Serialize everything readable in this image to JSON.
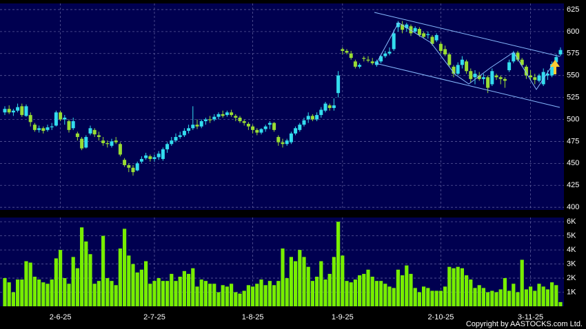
{
  "chart_data": [
    {
      "type": "candlestick",
      "ylim": [
        397,
        632
      ],
      "yticks": [
        400,
        425,
        450,
        475,
        500,
        525,
        550,
        575,
        600,
        625
      ],
      "grid": true,
      "up_color": "#33ddee",
      "down_color": "#99dd33",
      "ohlc": [
        [
          508,
          515,
          505,
          512
        ],
        [
          512,
          516,
          506,
          508
        ],
        [
          508,
          512,
          504,
          510
        ],
        [
          510,
          518,
          508,
          514
        ],
        [
          515,
          518,
          503,
          505
        ],
        [
          504,
          517,
          503,
          515
        ],
        [
          505,
          508,
          492,
          497
        ],
        [
          494,
          496,
          486,
          488
        ],
        [
          488,
          493,
          485,
          490
        ],
        [
          490,
          492,
          484,
          487
        ],
        [
          488,
          494,
          486,
          491
        ],
        [
          491,
          496,
          488,
          492
        ],
        [
          493,
          510,
          492,
          508
        ],
        [
          508,
          510,
          498,
          500
        ],
        [
          500,
          505,
          494,
          502
        ],
        [
          498,
          500,
          485,
          488
        ],
        [
          490,
          502,
          488,
          498
        ],
        [
          484,
          486,
          476,
          480
        ],
        [
          478,
          480,
          465,
          467
        ],
        [
          468,
          482,
          467,
          480
        ],
        [
          484,
          493,
          482,
          490
        ],
        [
          488,
          490,
          480,
          483
        ],
        [
          482,
          486,
          476,
          480
        ],
        [
          476,
          480,
          470,
          473
        ],
        [
          473,
          476,
          468,
          472
        ],
        [
          470,
          478,
          468,
          475
        ],
        [
          476,
          480,
          472,
          474
        ],
        [
          472,
          474,
          458,
          460
        ],
        [
          454,
          456,
          446,
          448
        ],
        [
          448,
          450,
          440,
          445
        ],
        [
          445,
          448,
          436,
          440
        ],
        [
          442,
          452,
          441,
          450
        ],
        [
          452,
          458,
          450,
          455
        ],
        [
          456,
          462,
          454,
          459
        ],
        [
          458,
          460,
          452,
          455
        ],
        [
          455,
          460,
          452,
          457
        ],
        [
          457,
          464,
          454,
          461
        ],
        [
          455,
          468,
          453,
          466
        ],
        [
          466,
          474,
          462,
          472
        ],
        [
          472,
          480,
          470,
          476
        ],
        [
          476,
          484,
          474,
          480
        ],
        [
          480,
          486,
          478,
          482
        ],
        [
          482,
          490,
          480,
          487
        ],
        [
          487,
          494,
          484,
          490
        ],
        [
          490,
          515,
          488,
          494
        ],
        [
          494,
          500,
          489,
          492
        ],
        [
          492,
          500,
          490,
          498
        ],
        [
          498,
          502,
          494,
          500
        ],
        [
          500,
          504,
          496,
          499
        ],
        [
          500,
          506,
          498,
          503
        ],
        [
          503,
          508,
          500,
          506
        ],
        [
          506,
          510,
          502,
          504
        ],
        [
          505,
          510,
          503,
          508
        ],
        [
          508,
          511,
          503,
          505
        ],
        [
          504,
          506,
          498,
          502
        ],
        [
          502,
          504,
          496,
          498
        ],
        [
          498,
          500,
          493,
          496
        ],
        [
          495,
          497,
          488,
          492
        ],
        [
          492,
          494,
          484,
          488
        ],
        [
          488,
          490,
          482,
          485
        ],
        [
          485,
          490,
          483,
          489
        ],
        [
          489,
          494,
          486,
          492
        ],
        [
          494,
          498,
          489,
          496
        ],
        [
          496,
          497,
          486,
          488
        ],
        [
          480,
          482,
          470,
          474
        ],
        [
          474,
          478,
          468,
          472
        ],
        [
          472,
          478,
          470,
          476
        ],
        [
          474,
          486,
          472,
          484
        ],
        [
          484,
          492,
          482,
          490
        ],
        [
          488,
          496,
          486,
          494
        ],
        [
          494,
          502,
          492,
          499
        ],
        [
          500,
          508,
          496,
          504
        ],
        [
          504,
          506,
          498,
          500
        ],
        [
          500,
          508,
          498,
          505
        ],
        [
          505,
          514,
          502,
          511
        ],
        [
          510,
          520,
          508,
          518
        ],
        [
          516,
          518,
          510,
          513
        ],
        [
          513,
          524,
          510,
          516
        ],
        [
          530,
          555,
          525,
          550
        ],
        [
          580,
          582,
          574,
          578
        ],
        [
          578,
          580,
          574,
          576
        ],
        [
          575,
          578,
          568,
          570
        ],
        [
          566,
          568,
          558,
          560
        ],
        [
          560,
          564,
          558,
          562
        ],
        [
          570,
          572,
          566,
          569
        ],
        [
          568,
          572,
          565,
          567
        ],
        [
          566,
          570,
          562,
          564
        ],
        [
          562,
          568,
          560,
          566
        ],
        [
          566,
          574,
          564,
          572
        ],
        [
          572,
          578,
          570,
          575
        ],
        [
          575,
          582,
          573,
          577
        ],
        [
          580,
          602,
          578,
          598
        ],
        [
          605,
          612,
          600,
          610
        ],
        [
          608,
          612,
          598,
          602
        ],
        [
          604,
          610,
          600,
          608
        ],
        [
          606,
          608,
          595,
          598
        ],
        [
          600,
          606,
          598,
          604
        ],
        [
          603,
          605,
          594,
          596
        ],
        [
          598,
          600,
          592,
          594
        ],
        [
          596,
          600,
          592,
          597
        ],
        [
          594,
          596,
          584,
          586
        ],
        [
          590,
          598,
          588,
          596
        ],
        [
          586,
          588,
          575,
          578
        ],
        [
          580,
          584,
          572,
          574
        ],
        [
          574,
          576,
          560,
          562
        ],
        [
          560,
          562,
          548,
          552
        ],
        [
          552,
          565,
          550,
          562
        ],
        [
          562,
          572,
          558,
          568
        ],
        [
          566,
          568,
          552,
          555
        ],
        [
          555,
          558,
          542,
          546
        ],
        [
          548,
          556,
          540,
          552
        ],
        [
          550,
          554,
          544,
          546
        ],
        [
          546,
          552,
          540,
          548
        ],
        [
          548,
          550,
          530,
          536
        ],
        [
          540,
          558,
          538,
          555
        ],
        [
          550,
          552,
          545,
          548
        ],
        [
          548,
          550,
          540,
          546
        ],
        [
          546,
          548,
          536,
          544
        ],
        [
          556,
          568,
          554,
          565
        ],
        [
          566,
          578,
          564,
          576
        ],
        [
          576,
          578,
          566,
          568
        ],
        [
          568,
          570,
          560,
          562
        ],
        [
          560,
          562,
          546,
          550
        ],
        [
          550,
          556,
          544,
          548
        ],
        [
          548,
          552,
          540,
          545
        ],
        [
          544,
          552,
          542,
          550
        ],
        [
          540,
          558,
          538,
          554
        ],
        [
          550,
          556,
          545,
          552
        ],
        [
          550,
          566,
          548,
          563
        ],
        [
          565,
          574,
          562,
          571
        ],
        [
          574,
          582,
          572,
          579
        ]
      ]
    },
    {
      "type": "bar",
      "color": "#77ee00",
      "ylim": [
        0,
        6300
      ],
      "grid": true,
      "yticks": [
        {
          "value": 1000,
          "label": "1K"
        },
        {
          "value": 2000,
          "label": "2K"
        },
        {
          "value": 3000,
          "label": "3K"
        },
        {
          "value": 4000,
          "label": "4K"
        },
        {
          "value": 5000,
          "label": "5K"
        },
        {
          "value": 6000,
          "label": "6K"
        }
      ],
      "categories": [
        null,
        null,
        null,
        null,
        null,
        null,
        null,
        null,
        null,
        null,
        null,
        null,
        null,
        "2-6-25",
        null,
        null,
        null,
        null,
        null,
        null,
        null,
        null,
        null,
        null,
        null,
        null,
        null,
        null,
        null,
        null,
        null,
        null,
        null,
        null,
        null,
        "2-7-25",
        null,
        null,
        null,
        null,
        null,
        null,
        null,
        null,
        null,
        null,
        null,
        null,
        null,
        null,
        null,
        null,
        null,
        null,
        null,
        null,
        null,
        null,
        "1-8-25",
        null,
        null,
        null,
        null,
        null,
        null,
        null,
        null,
        null,
        null,
        null,
        null,
        null,
        null,
        null,
        null,
        null,
        null,
        null,
        null,
        "1-9-25",
        null,
        null,
        null,
        null,
        null,
        null,
        null,
        null,
        null,
        null,
        null,
        null,
        null,
        null,
        null,
        null,
        null,
        null,
        null,
        null,
        null,
        null,
        "2-10-25",
        null,
        null,
        null,
        null,
        null,
        null,
        null,
        null,
        null,
        null,
        null,
        null,
        null,
        null,
        null,
        null,
        null,
        null,
        null,
        null,
        "3-11-25",
        null,
        null,
        null,
        null,
        null,
        null,
        null
      ],
      "values": [
        2000,
        1700,
        1000,
        1900,
        1900,
        3200,
        3100,
        2100,
        1900,
        1700,
        1600,
        1900,
        3400,
        4000,
        2000,
        1600,
        3500,
        2700,
        5600,
        4600,
        3700,
        1600,
        1800,
        5000,
        2000,
        1800,
        1500,
        4100,
        5500,
        3600,
        3000,
        2400,
        2600,
        3200,
        1600,
        1800,
        2000,
        1800,
        1800,
        2300,
        1800,
        2100,
        2500,
        2300,
        2700,
        1400,
        1900,
        1800,
        1600,
        1600,
        1000,
        1500,
        1400,
        1600,
        1000,
        900,
        1100,
        1500,
        1400,
        1600,
        1900,
        1500,
        1800,
        1500,
        1800,
        4100,
        2000,
        3500,
        3200,
        4000,
        3500,
        2800,
        1800,
        2100,
        3200,
        1900,
        2300,
        3500,
        6000,
        3600,
        1800,
        1700,
        1900,
        2200,
        2300,
        2600,
        2100,
        1800,
        1800,
        1600,
        1400,
        1300,
        2600,
        2200,
        2900,
        2300,
        1300,
        1000,
        1400,
        1300,
        1100,
        1100,
        1100,
        1400,
        2800,
        2700,
        2800,
        2700,
        2200,
        1900,
        1300,
        1500,
        1300,
        1000,
        1100,
        1000,
        1200,
        2000,
        1100,
        1600,
        1000,
        3300,
        1200,
        1400,
        1100,
        1600,
        1400,
        1200,
        1700,
        1500,
        300
      ]
    }
  ],
  "credit": "Copyright by AASTOCKS.com Ltd."
}
